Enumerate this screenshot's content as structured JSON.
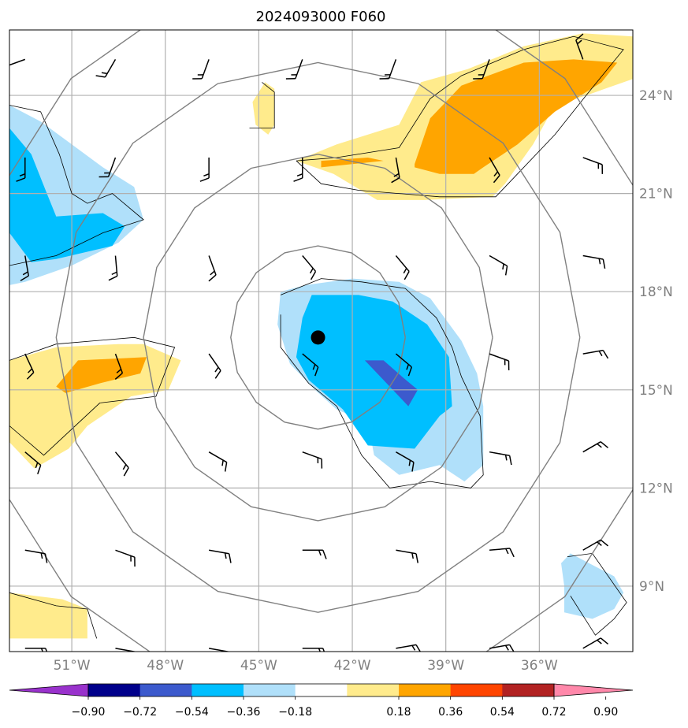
{
  "chart_data": {
    "type": "heatmap",
    "title": "2024093000 F060",
    "projection": "cylindrical lat-lon map with filled contours, line contours, wind barbs and a storm-center marker",
    "lon_range": [
      -53.0,
      -33.0
    ],
    "lat_range": [
      7.0,
      26.0
    ],
    "grid": true,
    "x_ticks": [
      {
        "value": -51,
        "label": "51°W"
      },
      {
        "value": -48,
        "label": "48°W"
      },
      {
        "value": -45,
        "label": "45°W"
      },
      {
        "value": -42,
        "label": "42°W"
      },
      {
        "value": -39,
        "label": "39°W"
      },
      {
        "value": -36,
        "label": "36°W"
      }
    ],
    "y_ticks": [
      {
        "value": 24,
        "label": "24°N"
      },
      {
        "value": 21,
        "label": "21°N"
      },
      {
        "value": 18,
        "label": "18°N"
      },
      {
        "value": 15,
        "label": "15°N"
      },
      {
        "value": 12,
        "label": "12°N"
      },
      {
        "value": 9,
        "label": "9°N"
      }
    ],
    "colorbar": {
      "orientation": "horizontal",
      "extend": "both",
      "levels": [
        -0.9,
        -0.72,
        -0.54,
        -0.36,
        -0.18,
        0.18,
        0.36,
        0.54,
        0.72,
        0.9
      ],
      "labels": [
        "−0.90",
        "−0.72",
        "−0.54",
        "−0.36",
        "−0.18",
        "0.18",
        "0.36",
        "0.54",
        "0.72",
        "0.90"
      ],
      "colors": [
        "#9932cc",
        "#00008b",
        "#3c5acd",
        "#00bfff",
        "#b0e0fa",
        "#ffffff",
        "#ffeb8c",
        "#ffa500",
        "#ff4500",
        "#b22222",
        "#ff88aa"
      ]
    },
    "storm_center": {
      "lon": -43.1,
      "lat": 16.6
    },
    "range_rings": {
      "center": {
        "lon": -43.1,
        "lat": 16.6
      },
      "radii_deg": [
        2.8,
        5.6,
        8.4,
        11.2
      ]
    },
    "filled_regions": [
      {
        "level": -0.36,
        "color": "#b0e0fa",
        "points": [
          [
            -53,
            23.7
          ],
          [
            -52,
            23.2
          ],
          [
            -51,
            22.5
          ],
          [
            -50,
            21.8
          ],
          [
            -49,
            21.2
          ],
          [
            -48.7,
            20.2
          ],
          [
            -49.5,
            19.5
          ],
          [
            -51,
            18.8
          ],
          [
            -52.5,
            18.3
          ],
          [
            -53,
            18.2
          ]
        ]
      },
      {
        "level": -0.54,
        "color": "#00bfff",
        "points": [
          [
            -53,
            23.0
          ],
          [
            -52.3,
            22.2
          ],
          [
            -51.8,
            21.0
          ],
          [
            -51.5,
            20.3
          ],
          [
            -50,
            20.4
          ],
          [
            -49.3,
            20.0
          ],
          [
            -49.7,
            19.4
          ],
          [
            -51.5,
            19.0
          ],
          [
            -52.3,
            18.9
          ],
          [
            -53,
            19.8
          ]
        ]
      },
      {
        "level": -0.36,
        "color": "#b0e0fa",
        "points": [
          [
            -43.5,
            18.2
          ],
          [
            -42,
            18.4
          ],
          [
            -40.5,
            18.3
          ],
          [
            -39.5,
            17.8
          ],
          [
            -38.5,
            16.5
          ],
          [
            -38,
            15.5
          ],
          [
            -37.8,
            14.5
          ],
          [
            -37.8,
            12.7
          ],
          [
            -38.4,
            12.2
          ],
          [
            -39.2,
            12.7
          ],
          [
            -40.5,
            12.4
          ],
          [
            -41.3,
            13.0
          ],
          [
            -41.5,
            14.0
          ],
          [
            -42.5,
            14.4
          ],
          [
            -43.2,
            15.0
          ],
          [
            -44,
            15.8
          ],
          [
            -44.4,
            17.0
          ],
          [
            -44.3,
            18.0
          ]
        ]
      },
      {
        "level": -0.54,
        "color": "#00bfff",
        "points": [
          [
            -43.3,
            17.9
          ],
          [
            -41.8,
            17.9
          ],
          [
            -40.7,
            17.7
          ],
          [
            -39.6,
            17.0
          ],
          [
            -38.9,
            16.0
          ],
          [
            -38.8,
            14.5
          ],
          [
            -39.2,
            14.2
          ],
          [
            -40,
            13.2
          ],
          [
            -41.5,
            13.3
          ],
          [
            -42.3,
            14.4
          ],
          [
            -43.4,
            15.3
          ],
          [
            -43.8,
            16.0
          ],
          [
            -43.6,
            17.2
          ]
        ]
      },
      {
        "level": -0.72,
        "color": "#3c5acd",
        "points": [
          [
            -41,
            15.9
          ],
          [
            -40.4,
            15.4
          ],
          [
            -39.9,
            15.0
          ],
          [
            -40.2,
            14.5
          ],
          [
            -40.9,
            15.2
          ],
          [
            -41.6,
            15.9
          ]
        ]
      },
      {
        "level": 0.18,
        "color": "#ffeb8c",
        "points": [
          [
            -44.8,
            24.4
          ],
          [
            -44.5,
            24.2
          ],
          [
            -44.5,
            23.1
          ],
          [
            -44.7,
            22.8
          ],
          [
            -45.1,
            23.1
          ],
          [
            -45.2,
            23.8
          ]
        ]
      },
      {
        "level": 0.18,
        "color": "#ffeb8c",
        "points": [
          [
            -43.8,
            22.0
          ],
          [
            -42.5,
            22.5
          ],
          [
            -40.5,
            23.1
          ],
          [
            -39.8,
            24.4
          ],
          [
            -38.3,
            24.8
          ],
          [
            -36.5,
            25.5
          ],
          [
            -34.6,
            25.9
          ],
          [
            -33,
            25.8
          ],
          [
            -33,
            24.5
          ],
          [
            -34.5,
            24.0
          ],
          [
            -35.5,
            23.7
          ],
          [
            -36.2,
            22.5
          ],
          [
            -37.1,
            21.3
          ],
          [
            -37.5,
            20.9
          ],
          [
            -39.7,
            20.8
          ],
          [
            -41.2,
            20.8
          ],
          [
            -42.6,
            21.6
          ],
          [
            -43.8,
            22.0
          ]
        ]
      },
      {
        "level": 0.36,
        "color": "#ffa500",
        "points": [
          [
            -43,
            22.0
          ],
          [
            -41.5,
            22.1
          ],
          [
            -41,
            22.0
          ],
          [
            -43,
            21.8
          ]
        ]
      },
      {
        "level": 0.36,
        "color": "#ffa500",
        "points": [
          [
            -40.0,
            21.9
          ],
          [
            -39.5,
            23.3
          ],
          [
            -38.5,
            24.3
          ],
          [
            -36.5,
            25.0
          ],
          [
            -34.9,
            25.1
          ],
          [
            -33.5,
            25.0
          ],
          [
            -34,
            24.4
          ],
          [
            -35.5,
            23.5
          ],
          [
            -36.7,
            22.5
          ],
          [
            -37.8,
            21.8
          ],
          [
            -38.1,
            21.6
          ],
          [
            -39.2,
            21.6
          ],
          [
            -40.0,
            21.8
          ]
        ]
      },
      {
        "level": 0.18,
        "color": "#ffeb8c",
        "points": [
          [
            -53,
            15.9
          ],
          [
            -51.5,
            16.3
          ],
          [
            -49.5,
            16.4
          ],
          [
            -48.7,
            16.4
          ],
          [
            -47.5,
            15.9
          ],
          [
            -47.9,
            15.0
          ],
          [
            -49.1,
            14.8
          ],
          [
            -50.5,
            13.9
          ],
          [
            -51.1,
            13.2
          ],
          [
            -52.2,
            12.6
          ],
          [
            -53,
            13.4
          ]
        ]
      },
      {
        "level": 0.36,
        "color": "#ffa500",
        "points": [
          [
            -51.5,
            15.1
          ],
          [
            -50.8,
            15.9
          ],
          [
            -48.6,
            16.0
          ],
          [
            -48.8,
            15.5
          ],
          [
            -50.1,
            15.2
          ],
          [
            -51.2,
            14.9
          ]
        ]
      },
      {
        "level": -0.36,
        "color": "#b0e0fa",
        "points": [
          [
            -35,
            10.0
          ],
          [
            -34.6,
            9.8
          ],
          [
            -33.6,
            9.3
          ],
          [
            -33.3,
            8.8
          ],
          [
            -33.6,
            8.3
          ],
          [
            -34.3,
            8.0
          ],
          [
            -35.2,
            8.2
          ],
          [
            -35.2,
            9.0
          ],
          [
            -35.3,
            9.7
          ]
        ]
      },
      {
        "level": 0.18,
        "color": "#ffeb8c",
        "points": [
          [
            -53,
            8.8
          ],
          [
            -51.3,
            8.6
          ],
          [
            -50.5,
            8.3
          ],
          [
            -50.5,
            7.4
          ],
          [
            -52.8,
            7.4
          ],
          [
            -53,
            7.4
          ]
        ]
      }
    ],
    "thin_contours": [
      [
        [
          -53,
          23.7
        ],
        [
          -52,
          23.5
        ],
        [
          -51.4,
          22.2
        ],
        [
          -51,
          21.0
        ],
        [
          -50.5,
          20.7
        ],
        [
          -49.7,
          21.0
        ],
        [
          -48.7,
          20.2
        ],
        [
          -50,
          19.8
        ],
        [
          -51.5,
          19.1
        ],
        [
          -53,
          18.8
        ]
      ],
      [
        [
          -44.9,
          24.4
        ],
        [
          -44.5,
          24.1
        ],
        [
          -44.5,
          23.0
        ],
        [
          -45.3,
          23.0
        ]
      ],
      [
        [
          -43.8,
          22.0
        ],
        [
          -42.5,
          22.1
        ],
        [
          -40.5,
          22.4
        ],
        [
          -39.5,
          23.9
        ],
        [
          -38.5,
          24.6
        ],
        [
          -36.5,
          25.4
        ],
        [
          -34.9,
          25.8
        ],
        [
          -33.3,
          25.4
        ],
        [
          -34.5,
          24.0
        ],
        [
          -35.5,
          22.8
        ],
        [
          -37.4,
          20.9
        ],
        [
          -39.2,
          20.9
        ],
        [
          -41.8,
          21.1
        ],
        [
          -43,
          21.3
        ],
        [
          -43.8,
          22.0
        ]
      ],
      [
        [
          -53,
          15.9
        ],
        [
          -51.5,
          16.4
        ],
        [
          -49,
          16.6
        ],
        [
          -47.7,
          16.3
        ],
        [
          -48.3,
          14.8
        ],
        [
          -50.1,
          14.6
        ],
        [
          -51.9,
          13.0
        ],
        [
          -53,
          13.9
        ]
      ],
      [
        [
          -44.3,
          17.9
        ],
        [
          -43,
          18.4
        ],
        [
          -41.7,
          18.3
        ],
        [
          -40.3,
          18.1
        ],
        [
          -39.3,
          17.2
        ],
        [
          -38.8,
          16.3
        ],
        [
          -38.5,
          15.4
        ],
        [
          -37.9,
          14.2
        ],
        [
          -37.8,
          12.4
        ],
        [
          -38.2,
          12.0
        ],
        [
          -39.5,
          12.2
        ],
        [
          -40.8,
          12.0
        ],
        [
          -41.7,
          13.0
        ],
        [
          -42.5,
          14.5
        ],
        [
          -43.4,
          15.2
        ],
        [
          -44.3,
          16.3
        ],
        [
          -44.3,
          17.3
        ]
      ],
      [
        [
          -35.1,
          9.9
        ],
        [
          -34.3,
          10.0
        ],
        [
          -33.2,
          8.5
        ],
        [
          -33.6,
          8.0
        ],
        [
          -34.2,
          7.5
        ],
        [
          -35,
          8.7
        ]
      ],
      [
        [
          -53,
          8.8
        ],
        [
          -51.5,
          8.4
        ],
        [
          -50.5,
          8.3
        ],
        [
          -50.2,
          7.4
        ]
      ]
    ],
    "wind_barbs": {
      "lons": [
        -52.5,
        -49.6,
        -46.6,
        -43.6,
        -40.6,
        -37.6,
        -34.6
      ],
      "lats": [
        25.1,
        22.1,
        19.1,
        16.1,
        13.1,
        10.1,
        7.1
      ],
      "directions_deg": [
        [
          250,
          210,
          200,
          200,
          200,
          200,
          340
        ],
        [
          180,
          200,
          180,
          180,
          170,
          150,
          110
        ],
        [
          170,
          175,
          160,
          140,
          140,
          120,
          100
        ],
        [
          155,
          160,
          145,
          130,
          130,
          110,
          80
        ],
        [
          130,
          140,
          120,
          110,
          120,
          100,
          60
        ],
        [
          100,
          110,
          100,
          90,
          100,
          85,
          60
        ],
        [
          90,
          100,
          100,
          90,
          80,
          80,
          60
        ]
      ]
    }
  }
}
